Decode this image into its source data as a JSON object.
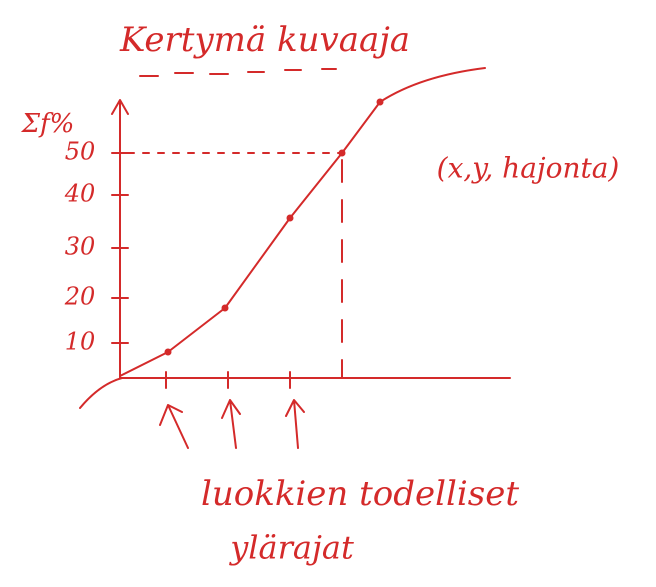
{
  "header": {
    "title": "Kertymä kuvaaja"
  },
  "axis": {
    "y_label": "Σf%",
    "ticks": [
      "10",
      "20",
      "30",
      "40",
      "50"
    ]
  },
  "annotations": {
    "point_note": "(x,y, hajonta)",
    "x_note_line1": "luokkien todelliset",
    "x_note_line2": "ylärajat"
  }
}
